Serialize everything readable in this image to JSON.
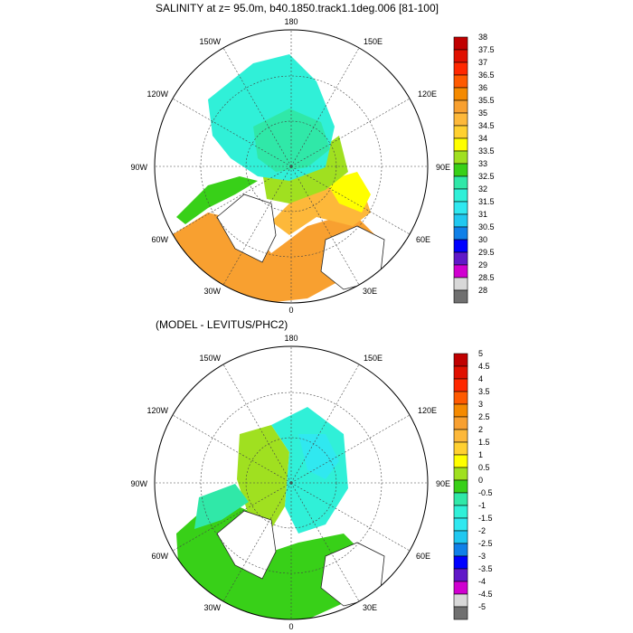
{
  "panels": [
    {
      "title": "SALINITY at z=  95.0m, b40.1850.track1.1deg.006 [81-100]",
      "lon_labels": [
        "180",
        "150E",
        "120E",
        "90E",
        "60E",
        "30E",
        "0",
        "30W",
        "60W",
        "90W",
        "120W",
        "150W"
      ],
      "colorbar": {
        "labels": [
          "38",
          "37.5",
          "37",
          "36.5",
          "36",
          "35.5",
          "35",
          "34.5",
          "34",
          "33.5",
          "33",
          "32.5",
          "32",
          "31.5",
          "31",
          "30.5",
          "30",
          "29.5",
          "29",
          "28.5",
          "28"
        ],
        "colors": [
          "#c00000",
          "#e01000",
          "#ff2800",
          "#ff5a00",
          "#f58a00",
          "#f8a030",
          "#fdb83a",
          "#ffd030",
          "#ffff00",
          "#a0e020",
          "#38d018",
          "#30e8a8",
          "#30f0d8",
          "#30e8f0",
          "#20c8f0",
          "#1080e8",
          "#0000ff",
          "#6018c8",
          "#d000d0",
          "#d8d8d8",
          "#707070"
        ]
      }
    },
    {
      "title": "(MODEL - LEVITUS/PHC2)",
      "lon_labels": [
        "180",
        "150E",
        "120E",
        "90E",
        "60E",
        "30E",
        "0",
        "30W",
        "60W",
        "90W",
        "120W",
        "150W"
      ],
      "colorbar": {
        "labels": [
          "5",
          "4.5",
          "4",
          "3.5",
          "3",
          "2.5",
          "2",
          "1.5",
          "1",
          "0.5",
          "0",
          "-0.5",
          "-1",
          "-1.5",
          "-2",
          "-2.5",
          "-3",
          "-3.5",
          "-4",
          "-4.5",
          "-5"
        ],
        "colors": [
          "#c00000",
          "#e01000",
          "#ff2800",
          "#ff5a00",
          "#f58a00",
          "#f8a030",
          "#fdb83a",
          "#ffd030",
          "#ffff00",
          "#a0e020",
          "#38d018",
          "#30e8a8",
          "#30f0d8",
          "#30e8f0",
          "#20c8f0",
          "#1080e8",
          "#0000ff",
          "#6018c8",
          "#d000d0",
          "#d8d8d8",
          "#707070"
        ]
      }
    }
  ]
}
